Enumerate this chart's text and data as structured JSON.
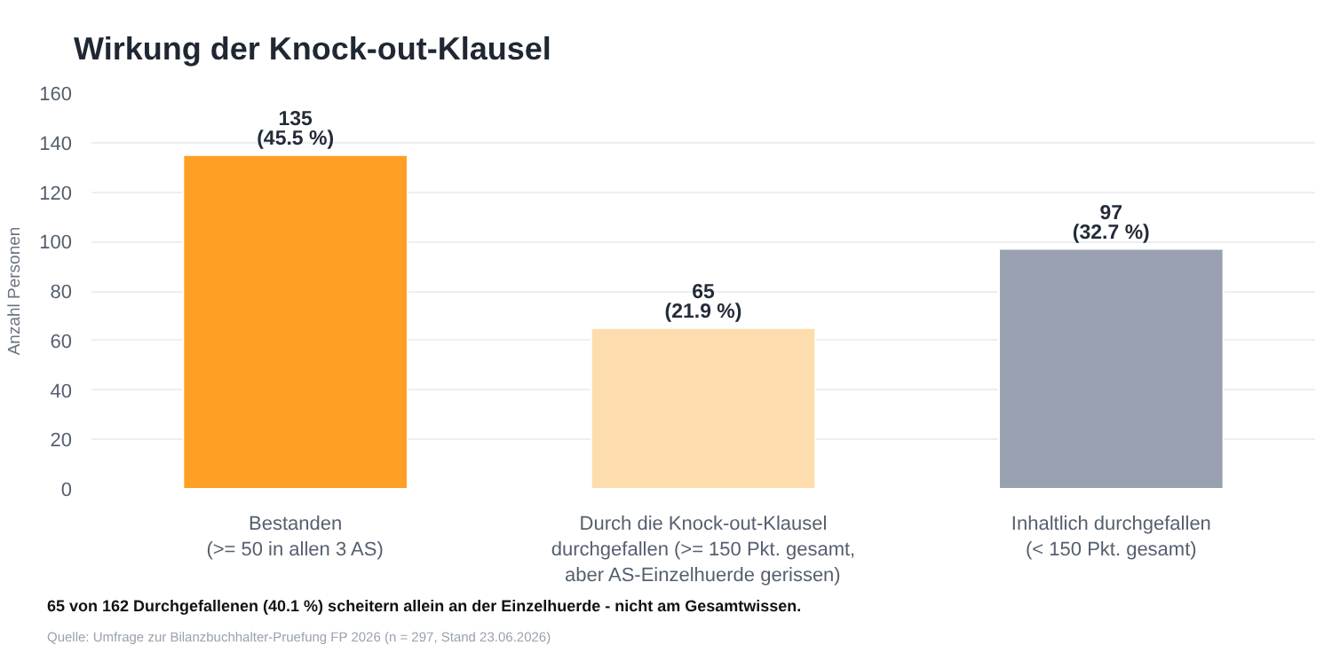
{
  "chart_data": {
    "type": "bar",
    "title": "Wirkung der Knock-out-Klausel",
    "ylabel": "Anzahl Personen",
    "categories": [
      "Bestanden\n(>= 50 in allen 3 AS)",
      "Durch die Knock-out-Klausel\ndurchgefallen (>= 150 Pkt. gesamt,\naber AS-Einzelhuerde gerissen)",
      "Inhaltlich durchgefallen\n(< 150 Pkt. gesamt)"
    ],
    "values": [
      135,
      65,
      97
    ],
    "colors": [
      "#ff9f24",
      "#fddcad",
      "#99a1b0"
    ],
    "value_labels": [
      "135\n(45.5 %)",
      "65\n(21.9 %)",
      "97\n(32.7 %)"
    ],
    "ylim": [
      0,
      160
    ],
    "yticks": [
      0,
      20,
      40,
      60,
      80,
      100,
      120,
      140,
      160
    ],
    "grid": "y",
    "annotations": [
      "65 von 162 Durchgefallenen (40.1 %) scheitern allein an der Einzelhuerde - nicht am Gesamtwissen.",
      "Quelle: Umfrage zur Bilanzbuchhalter-Pruefung FP 2026 (n = 297, Stand 23.06.2026)"
    ]
  }
}
